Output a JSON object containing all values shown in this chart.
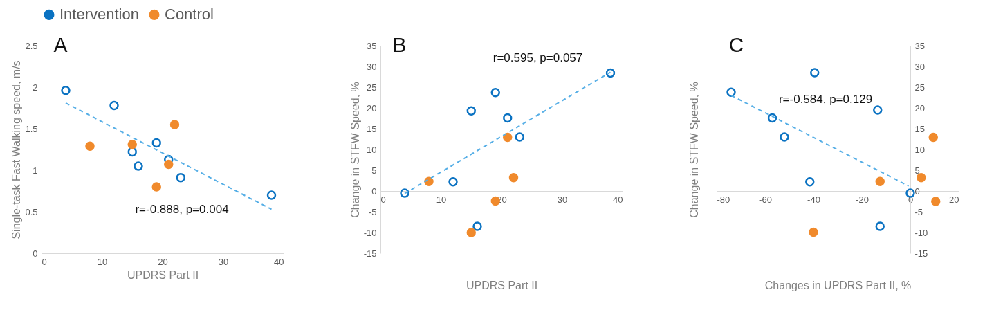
{
  "chart_data": [
    {
      "type": "scatter",
      "title": "A",
      "xlabel": "UPDRS Part II",
      "ylabel": "Single-task Fast Walking speed, m/s",
      "xlim": [
        0,
        40
      ],
      "xticks": [
        0,
        10,
        20,
        30,
        40
      ],
      "ylim": [
        0,
        2.5
      ],
      "yticks": [
        0,
        0.5,
        1,
        1.5,
        2,
        2.5
      ],
      "grid": false,
      "legend": "top",
      "annotations": [
        "r=-0.888, p=0.004"
      ],
      "series": [
        {
          "name": "Intervention",
          "color": "#0a72c2",
          "marker": "circle",
          "x": [
            4,
            12,
            15,
            19,
            21,
            16,
            23,
            38
          ],
          "values": [
            1.96,
            1.78,
            1.22,
            1.33,
            1.13,
            1.05,
            0.91,
            0.7
          ]
        },
        {
          "name": "Control",
          "color": "#f08a2c",
          "marker": "circle",
          "x": [
            8,
            15,
            22,
            21,
            19
          ],
          "values": [
            1.29,
            1.31,
            1.55,
            1.07,
            0.8
          ]
        },
        {
          "type": "line",
          "color": "#55aee6",
          "marker": "none",
          "line_style": "dashed",
          "x": [
            4,
            38
          ],
          "values": [
            1.81,
            0.53
          ]
        }
      ]
    },
    {
      "type": "scatter",
      "title": "B",
      "xlabel": "UPDRS Part II",
      "ylabel": "Change in STFW Speed, %",
      "xlim": [
        0,
        40
      ],
      "xticks": [
        0,
        10,
        20,
        30,
        40
      ],
      "ylim": [
        -15,
        35
      ],
      "yticks": [
        -15,
        -10,
        -5,
        0,
        5,
        10,
        15,
        20,
        25,
        30,
        35
      ],
      "grid": false,
      "annotations": [
        "r=0.595, p=0.057"
      ],
      "series": [
        {
          "name": "Intervention",
          "color": "#0a72c2",
          "marker": "circle",
          "x": [
            4,
            12,
            15,
            19,
            21,
            23,
            16,
            38
          ],
          "values": [
            -0.5,
            2.2,
            19.3,
            23.7,
            17.6,
            13.0,
            -8.5,
            28.4
          ]
        },
        {
          "name": "Control",
          "color": "#f08a2c",
          "marker": "circle",
          "x": [
            8,
            21,
            22,
            19,
            15
          ],
          "values": [
            2.3,
            12.9,
            3.2,
            -2.4,
            -10.0
          ]
        },
        {
          "type": "line",
          "color": "#55aee6",
          "marker": "none",
          "line_style": "dashed",
          "x": [
            4,
            38
          ],
          "values": [
            -0.6,
            28.6
          ]
        }
      ]
    },
    {
      "type": "scatter",
      "title": "C",
      "xlabel": "Changes in UPDRS Part II, %",
      "ylabel": "Change in STFW Speed, %",
      "xlim": [
        -80,
        20
      ],
      "xticks": [
        -80,
        -60,
        -40,
        -20,
        0,
        20
      ],
      "ylim": [
        -15,
        35
      ],
      "yticks": [
        -15,
        -10,
        -5,
        0,
        5,
        10,
        15,
        20,
        25,
        30,
        35
      ],
      "grid": false,
      "annotations": [
        "r=-0.584, p=0.129"
      ],
      "series": [
        {
          "name": "Intervention",
          "color": "#0a72c2",
          "marker": "circle",
          "x": [
            -74,
            -57,
            -52,
            -39.5,
            -41.5,
            -13.5,
            -12.5,
            0
          ],
          "values": [
            23.8,
            17.6,
            13.0,
            28.5,
            2.2,
            19.5,
            -8.5,
            -0.5
          ]
        },
        {
          "name": "Control",
          "color": "#f08a2c",
          "marker": "circle",
          "x": [
            -40,
            -12.5,
            4.5,
            9.5,
            10.5
          ],
          "values": [
            -9.9,
            2.3,
            3.2,
            12.9,
            -2.5
          ]
        },
        {
          "type": "line",
          "color": "#55aee6",
          "marker": "none",
          "line_style": "dashed",
          "x": [
            -74,
            -0.7
          ],
          "values": [
            23.0,
            1.2
          ]
        }
      ]
    }
  ]
}
